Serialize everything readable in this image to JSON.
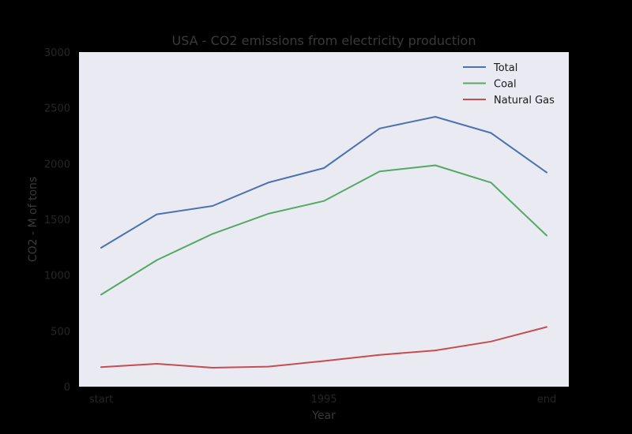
{
  "chart_data": {
    "type": "line",
    "title": "USA - CO2 emissions from electricity production",
    "xlabel": "Year",
    "ylabel": "CO2 - M of tons",
    "ylim": [
      0,
      3000
    ],
    "yticks": [
      "0",
      "500",
      "1000",
      "1500",
      "2000",
      "2500",
      "3000"
    ],
    "xticks": [
      {
        "index": 0,
        "label": "start"
      },
      {
        "index": 4,
        "label": "1995"
      },
      {
        "index": 8,
        "label": "end"
      }
    ],
    "point_count": 9,
    "grid": false,
    "legend_position": "top-right",
    "series": [
      {
        "name": "Total",
        "color": "#4c72b0",
        "values": [
          1245,
          1545,
          1620,
          1830,
          1960,
          2315,
          2420,
          2275,
          1920
        ]
      },
      {
        "name": "Coal",
        "color": "#55a868",
        "values": [
          825,
          1135,
          1370,
          1550,
          1665,
          1930,
          1985,
          1830,
          1355
        ]
      },
      {
        "name": "Natural Gas",
        "color": "#c44e52",
        "values": [
          175,
          205,
          170,
          180,
          230,
          285,
          325,
          405,
          535
        ]
      }
    ],
    "background": "#eaeaf2"
  }
}
